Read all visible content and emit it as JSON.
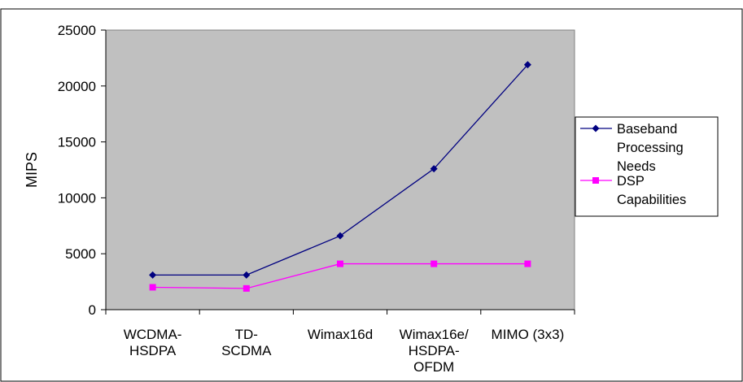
{
  "chart_data": {
    "type": "line",
    "title": "",
    "xlabel": "",
    "ylabel": "MIPS",
    "ylim": [
      0,
      25000
    ],
    "yticks": [
      0,
      5000,
      10000,
      15000,
      20000,
      25000
    ],
    "ytick_labels": [
      "0",
      "5000",
      "10000",
      "15000",
      "20000",
      "25000"
    ],
    "grid": false,
    "legend_position": "right",
    "plot_background": "#c0c0c0",
    "categories": [
      [
        "WCDMA-",
        "HSDPA"
      ],
      [
        "TD-",
        "SCDMA"
      ],
      [
        "Wimax16d"
      ],
      [
        "Wimax16e/",
        "HSDPA-",
        "OFDM"
      ],
      [
        "MIMO (3x3)"
      ]
    ],
    "series": [
      {
        "name": "Baseband Processing Needs",
        "legend_lines": [
          "Baseband",
          "Processing",
          "Needs"
        ],
        "color": "#000080",
        "marker": "diamond",
        "values": [
          3100,
          3100,
          6600,
          12600,
          21900
        ]
      },
      {
        "name": "DSP Capabilities",
        "legend_lines": [
          "DSP",
          "Capabilities"
        ],
        "color": "#ff00ff",
        "marker": "square",
        "values": [
          2000,
          1900,
          4100,
          4100,
          4100
        ]
      }
    ]
  }
}
